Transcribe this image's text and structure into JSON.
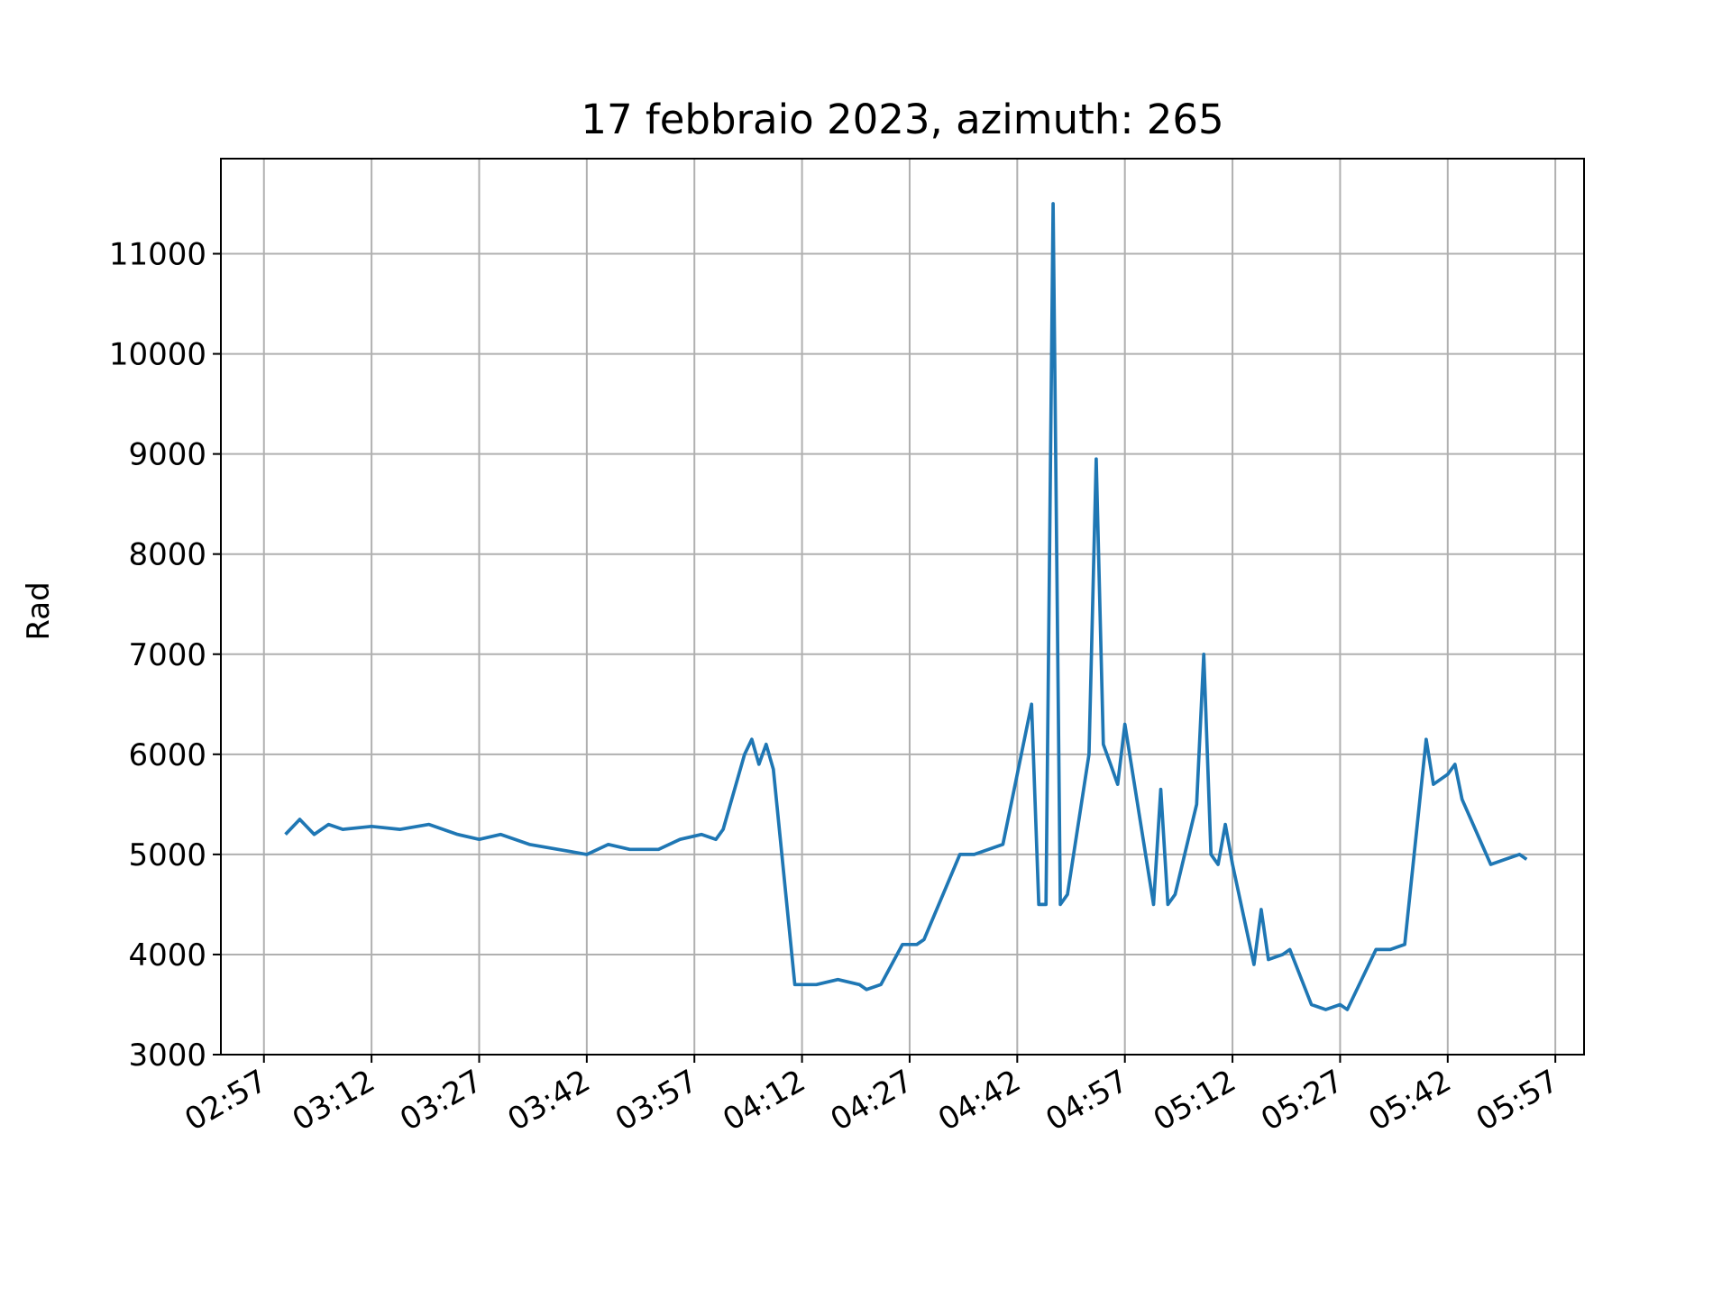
{
  "chart_data": {
    "type": "line",
    "title": "17 febbraio 2023, azimuth: 265",
    "y_label": "Rad",
    "x": [
      "03:00",
      "03:02",
      "03:04",
      "03:06",
      "03:08",
      "03:12",
      "03:16",
      "03:20",
      "03:24",
      "03:27",
      "03:30",
      "03:34",
      "03:38",
      "03:42",
      "03:45",
      "03:48",
      "03:52",
      "03:55",
      "03:58",
      "04:00",
      "04:01",
      "04:04",
      "04:05",
      "04:06",
      "04:07",
      "04:08",
      "04:11",
      "04:14",
      "04:17",
      "04:20",
      "04:21",
      "04:23",
      "04:26",
      "04:28",
      "04:29",
      "04:34",
      "04:36",
      "04:40",
      "04:44",
      "04:45",
      "04:46",
      "04:47",
      "04:48",
      "04:49",
      "04:52",
      "04:53",
      "04:54",
      "04:55",
      "04:56",
      "04:57",
      "05:01",
      "05:02",
      "05:03",
      "05:04",
      "05:07",
      "05:08",
      "05:09",
      "05:10",
      "05:11",
      "05:12",
      "05:15",
      "05:16",
      "05:17",
      "05:19",
      "05:20",
      "05:23",
      "05:25",
      "05:27",
      "05:28",
      "05:32",
      "05:34",
      "05:36",
      "05:39",
      "05:40",
      "05:42",
      "05:43",
      "05:44",
      "05:48",
      "05:50",
      "05:52",
      "05:53"
    ],
    "series": [
      {
        "name": "Rad",
        "color": "#1f77b4",
        "values": [
          5200,
          5350,
          5200,
          5300,
          5250,
          5280,
          5250,
          5300,
          5200,
          5150,
          5200,
          5100,
          5050,
          5000,
          5100,
          5050,
          5050,
          5150,
          5200,
          5150,
          5250,
          6000,
          6150,
          5900,
          6100,
          5850,
          3700,
          3700,
          3750,
          3700,
          3650,
          3700,
          4100,
          4100,
          4150,
          5000,
          5000,
          5100,
          6500,
          4500,
          4500,
          11500,
          4500,
          4600,
          6000,
          8950,
          6100,
          5900,
          5700,
          6300,
          4500,
          5650,
          4500,
          4600,
          5500,
          7000,
          5000,
          4900,
          5300,
          4900,
          3900,
          4450,
          3950,
          4000,
          4050,
          3500,
          3450,
          3500,
          3450,
          4050,
          4050,
          4100,
          6150,
          5700,
          5800,
          5900,
          5550,
          4900,
          4950,
          5000,
          4950
        ]
      }
    ],
    "xlim": [
      "02:51",
      "06:01"
    ],
    "xticks": [
      "02:57",
      "03:12",
      "03:27",
      "03:42",
      "03:57",
      "04:12",
      "04:27",
      "04:42",
      "04:57",
      "05:12",
      "05:27",
      "05:42",
      "05:57"
    ],
    "ylim": [
      3000,
      11950
    ],
    "yticks": [
      3000,
      4000,
      5000,
      6000,
      7000,
      8000,
      9000,
      10000,
      11000
    ],
    "grid": true
  }
}
